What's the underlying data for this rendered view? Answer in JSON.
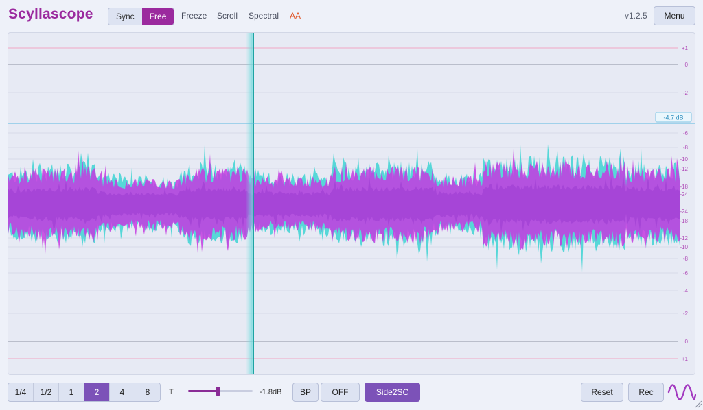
{
  "header": {
    "brand": "Scyllascope",
    "sync_label": "Sync",
    "free_label": "Free",
    "freeze_label": "Freeze",
    "scroll_label": "Scroll",
    "spectral_label": "Spectral",
    "aa_label": "AA",
    "version": "v1.2.5",
    "menu_label": "Menu"
  },
  "scope": {
    "right_scale_labels": [
      "+1",
      "0",
      "-2",
      "-6",
      "-8",
      "-10",
      "-12",
      "-18",
      "-24",
      "-24",
      "-18",
      "-12",
      "-10",
      "-8",
      "-6",
      "-4",
      "-2",
      "0",
      "+1"
    ],
    "threshold_label": "-4.7 dB",
    "colors": {
      "waveform_a": "#4fd6d6",
      "waveform_b": "#c43be0",
      "playhead": "#1fa3a3",
      "threshold_line": "#59b8df"
    }
  },
  "footer": {
    "divisions": [
      "1/4",
      "1/2",
      "1",
      "2",
      "4",
      "8"
    ],
    "selected_division": "2",
    "t_label": "T",
    "slider_value_label": "-1.8dB",
    "bp_label": "BP",
    "off_label": "OFF",
    "side_label": "Side2SC",
    "reset_label": "Reset",
    "rec_label": "Rec",
    "logo_icon": "sine-wave-icon"
  }
}
